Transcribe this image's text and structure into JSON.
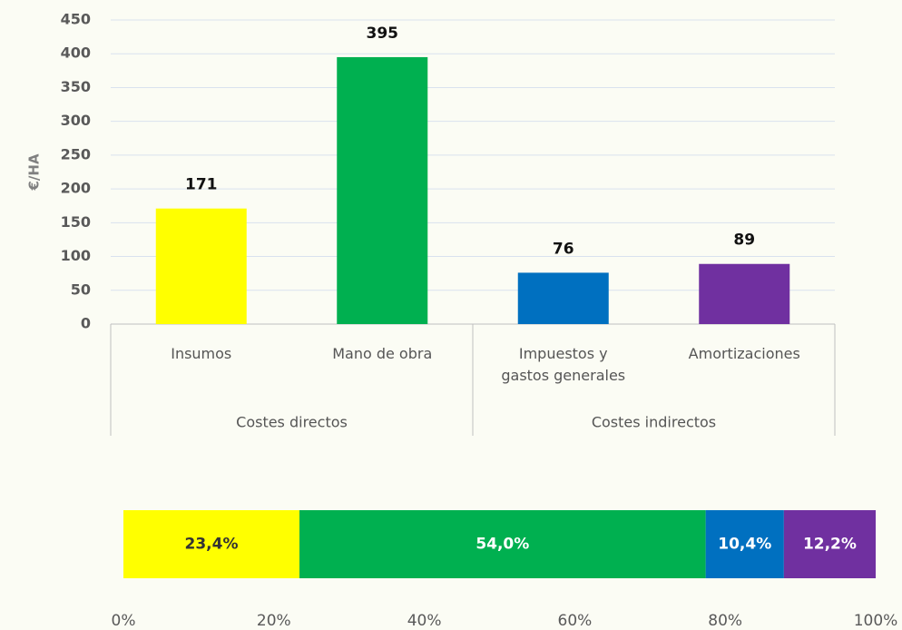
{
  "chart_data": [
    {
      "type": "bar",
      "y_label": "€/HA",
      "categories": [
        "Insumos",
        "Mano de obra",
        "Impuestos y gastos generales",
        "Amortizaciones"
      ],
      "values": [
        171,
        395,
        76,
        89
      ],
      "colors": [
        "#ffff00",
        "#00b050",
        "#0070c0",
        "#7030a0"
      ],
      "groups": [
        "Costes directos",
        "Costes indirectos"
      ],
      "ylim": [
        0,
        450
      ],
      "yticks": [
        0,
        50,
        100,
        150,
        200,
        250,
        300,
        350,
        400,
        450
      ],
      "grid": true
    },
    {
      "type": "stacked_bar_h",
      "series": [
        {
          "color": "#ffff00",
          "values": [
            23.4
          ],
          "value_labels": [
            "23,4%"
          ]
        },
        {
          "color": "#00b050",
          "values": [
            54.0
          ],
          "value_labels": [
            "54,0%"
          ]
        },
        {
          "color": "#0070c0",
          "values": [
            10.4
          ],
          "value_labels": [
            "10,4%"
          ]
        },
        {
          "color": "#7030a0",
          "values": [
            12.2
          ],
          "value_labels": [
            "12,2%"
          ]
        }
      ],
      "xlim": [
        0,
        100
      ],
      "xticks": [
        {
          "value": 0,
          "label": "0%"
        },
        {
          "value": 20,
          "label": "20%"
        },
        {
          "value": 40,
          "label": "40%"
        },
        {
          "value": 60,
          "label": "60%"
        },
        {
          "value": 80,
          "label": "80%"
        },
        {
          "value": 100,
          "label": "100%"
        }
      ]
    }
  ]
}
